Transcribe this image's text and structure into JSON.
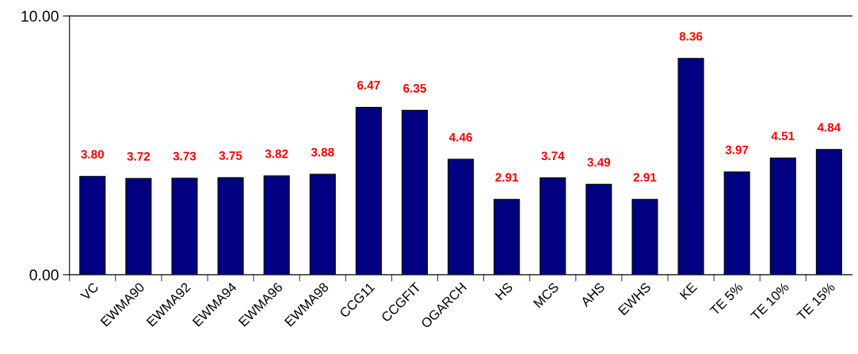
{
  "chart_data": {
    "type": "bar",
    "categories": [
      "VC",
      "EWMA90",
      "EWMA92",
      "EWMA94",
      "EWMA96",
      "EWMA98",
      "CCG11",
      "CCGFIT",
      "OGARCH",
      "HS",
      "MCS",
      "AHS",
      "EWHS",
      "KE",
      "TE 5%",
      "TE 10%",
      "TE 15%"
    ],
    "values": [
      3.8,
      3.72,
      3.73,
      3.75,
      3.82,
      3.88,
      6.47,
      6.35,
      4.46,
      2.91,
      3.74,
      3.49,
      2.91,
      8.36,
      3.97,
      4.51,
      4.84
    ],
    "color": "#000080",
    "value_labels": [
      "3.80",
      "3.72",
      "3.73",
      "3.75",
      "3.82",
      "3.88",
      "6.47",
      "6.35",
      "4.46",
      "2.91",
      "3.74",
      "3.49",
      "2.91",
      "8.36",
      "3.97",
      "4.51",
      "4.84"
    ],
    "ylim": [
      0,
      10
    ],
    "yticks": [
      {
        "value": 0,
        "label": "0.00"
      },
      {
        "value": 10,
        "label": "10.00"
      }
    ],
    "grid": false,
    "legend": false
  }
}
